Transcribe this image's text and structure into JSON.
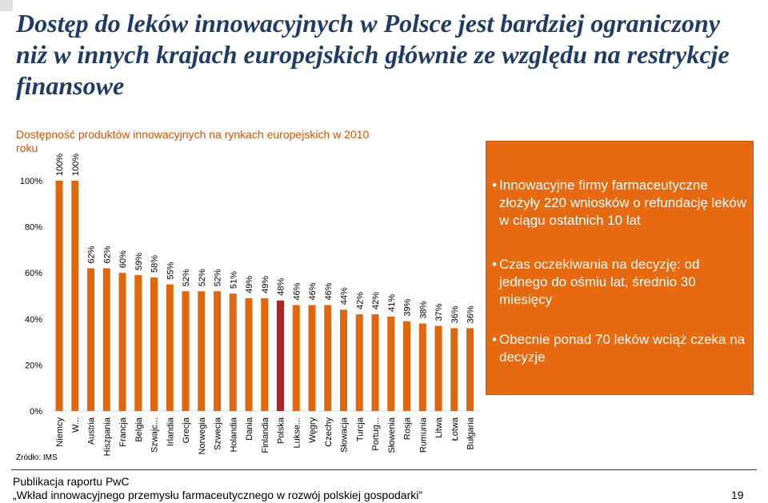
{
  "slide": {
    "title": "Dostęp do leków innowacyjnych w Polsce jest bardziej ograniczony niż w innych krajach europejskich głównie ze względu na restrykcje finansowe",
    "source": "Źródło: IMS",
    "footer_line1": "Publikacja raportu  PwC",
    "footer_line2": "„Wkład innowacyjnego przemysłu farmaceutycznego w rozwój polskiej gospodarki”",
    "page_number": "19"
  },
  "infobox": {
    "bullets": [
      "Innowacyjne firmy farmaceutyczne złożyły 220 wniosków o refundację leków w ciągu ostatnich 10 lat",
      "Czas oczekiwania na decyzję: od jednego do ośmiu lat, średnio 30 miesięcy",
      "Obecnie ponad 70 leków wciąż czeka na decyzje"
    ]
  },
  "chart_data": {
    "type": "bar",
    "title": "Dostępność produktów innowacyjnych na rynkach europejskich w 2010 roku",
    "xlabel": "",
    "ylabel": "",
    "ylim": [
      0,
      100
    ],
    "yticks": [
      "0%",
      "20%",
      "40%",
      "60%",
      "80%",
      "100%"
    ],
    "grid": false,
    "legend": "none",
    "categories": [
      "Niemcy",
      "W...",
      "Austria",
      "Hiszpania",
      "Francja",
      "Belgia",
      "Szwajc...",
      "Irlandia",
      "Grecja",
      "Norwegia",
      "Szwecja",
      "Holandia",
      "Dania",
      "Finlandia",
      "Polska",
      "Lukse...",
      "Węgry",
      "Czechy",
      "Słowacja",
      "Turcja",
      "Portug...",
      "Słowenia",
      "Rosja",
      "Rumunia",
      "Litwa",
      "Łotwa",
      "Bułgaria"
    ],
    "values": [
      100,
      100,
      62,
      62,
      60,
      59,
      58,
      55,
      52,
      52,
      52,
      51,
      49,
      49,
      48,
      46,
      46,
      46,
      44,
      42,
      42,
      41,
      39,
      38,
      37,
      36,
      36
    ],
    "labels": [
      "100%",
      "100%",
      "62%",
      "62%",
      "60%",
      "59%",
      "58%",
      "55%",
      "52%",
      "52%",
      "52%",
      "51%",
      "49%",
      "49%",
      "48%",
      "46%",
      "46%",
      "46%",
      "44%",
      "42%",
      "42%",
      "41%",
      "39%",
      "38%",
      "37%",
      "36%",
      "36%"
    ],
    "highlight_category": "Polska",
    "colors": {
      "bar": "#e1670d",
      "highlight": "#a3282a",
      "accent_text": "#d35400"
    }
  }
}
